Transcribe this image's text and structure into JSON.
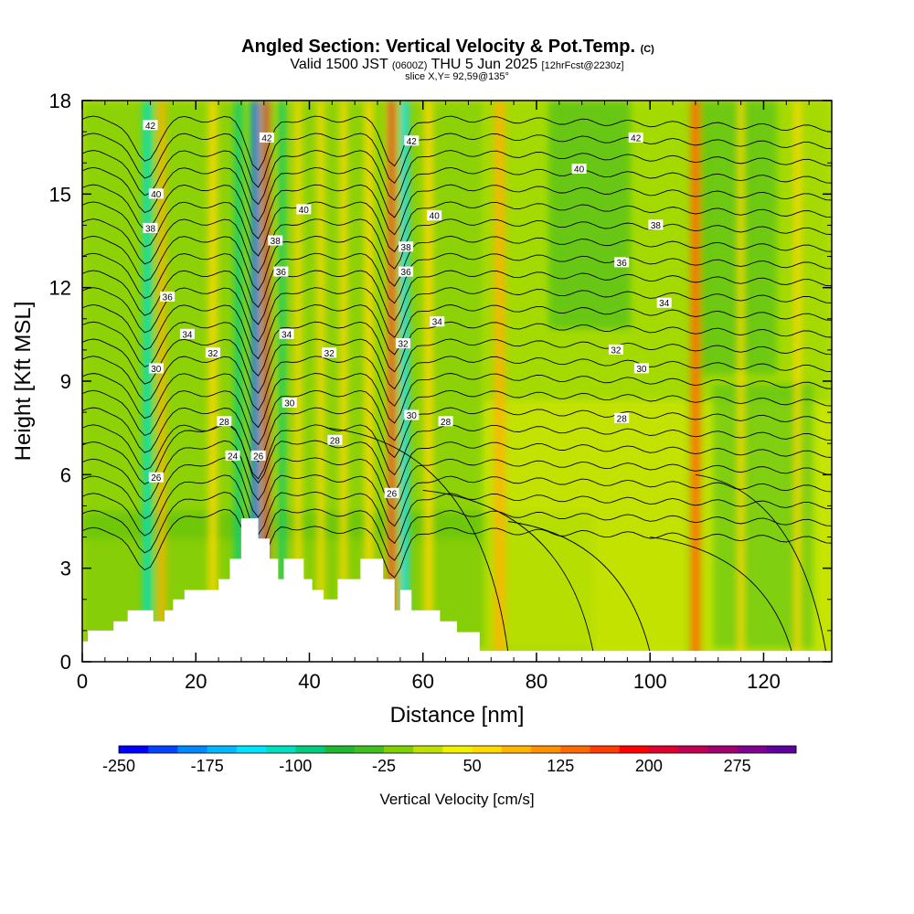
{
  "header": {
    "title": "Angled Section: Vertical Velocity & Pot.Temp.",
    "title_mark": "(C)",
    "valid_prefix": "Valid 1500 JST",
    "valid_z": "(0600Z)",
    "valid_date": "THU 5 Jun 2025",
    "valid_fcst": "[12hrFcst@2230z]",
    "slice": "slice X,Y= 92,59@135°"
  },
  "chart_data": {
    "type": "heatmap",
    "xlabel": "Distance [nm]",
    "ylabel": "Height [Kft MSL]",
    "xlim": [
      0,
      132
    ],
    "ylim": [
      0,
      18
    ],
    "x_ticks": [
      0,
      20,
      40,
      60,
      80,
      100,
      120
    ],
    "y_ticks": [
      0,
      3,
      6,
      9,
      12,
      15,
      18
    ],
    "colorbar": {
      "title": "Vertical Velocity [cm/s]",
      "min": -250,
      "max": 325,
      "step": 25,
      "tick_labels": [
        "-250",
        "-175",
        "-100",
        "-25",
        "50",
        "125",
        "200",
        "275"
      ],
      "colors": [
        "#0000ff",
        "#0044ff",
        "#0088ff",
        "#00b8ff",
        "#00e4ff",
        "#00e0c0",
        "#00cc80",
        "#20b830",
        "#40c020",
        "#80d000",
        "#c0e000",
        "#f0f000",
        "#ffd800",
        "#ffb400",
        "#ff9000",
        "#ff6a00",
        "#ff3c00",
        "#ff0000",
        "#e00030",
        "#c00050",
        "#a00070",
        "#800090",
        "#60009c"
      ]
    },
    "vertical_velocity_bands": [
      {
        "x": 11.5,
        "w": 1.6,
        "value": -120
      },
      {
        "x": 14.0,
        "w": 1.3,
        "value": 90
      },
      {
        "x": 23.0,
        "w": 1.5,
        "value": 70
      },
      {
        "x": 27.5,
        "w": 1.3,
        "value": -90
      },
      {
        "x": 30.5,
        "w": 0.9,
        "value": -240
      },
      {
        "x": 32.3,
        "w": 1.0,
        "value": 230
      },
      {
        "x": 35.2,
        "w": 1.0,
        "value": -100
      },
      {
        "x": 38.0,
        "w": 1.2,
        "value": 60
      },
      {
        "x": 42.0,
        "w": 1.2,
        "value": 60
      },
      {
        "x": 46.0,
        "w": 1.2,
        "value": 60
      },
      {
        "x": 50.5,
        "w": 1.5,
        "value": 70
      },
      {
        "x": 54.5,
        "w": 1.1,
        "value": 220
      },
      {
        "x": 56.8,
        "w": 1.0,
        "value": -150
      },
      {
        "x": 61.0,
        "w": 1.5,
        "value": 50
      },
      {
        "x": 73.5,
        "w": 1.8,
        "value": 80
      },
      {
        "x": 108.0,
        "w": 1.5,
        "value": 140
      },
      {
        "x": 116.0,
        "w": 1.2,
        "value": 60
      },
      {
        "x": 126.0,
        "w": 1.2,
        "value": 70
      }
    ],
    "terrain_kft": [
      [
        0,
        0.65
      ],
      [
        1,
        1.0
      ],
      [
        5.5,
        1.3
      ],
      [
        8,
        1.65
      ],
      [
        12.5,
        1.3
      ],
      [
        14.5,
        1.65
      ],
      [
        16,
        2.0
      ],
      [
        18,
        2.3
      ],
      [
        24,
        2.65
      ],
      [
        26,
        3.3
      ],
      [
        28,
        4.6
      ],
      [
        31,
        3.95
      ],
      [
        33,
        3.3
      ],
      [
        34.5,
        2.65
      ],
      [
        35.5,
        3.3
      ],
      [
        39,
        2.65
      ],
      [
        40.5,
        2.3
      ],
      [
        42.5,
        2.0
      ],
      [
        45,
        2.65
      ],
      [
        49,
        3.3
      ],
      [
        53,
        2.65
      ],
      [
        55,
        1.65
      ],
      [
        56,
        2.3
      ],
      [
        58,
        1.65
      ],
      [
        63,
        1.3
      ],
      [
        66,
        0.95
      ],
      [
        70,
        0.35
      ],
      [
        132,
        0.35
      ]
    ],
    "pot_temp_labels": [
      {
        "x": 12.0,
        "y": 17.2,
        "text": "42"
      },
      {
        "x": 32.5,
        "y": 16.8,
        "text": "42"
      },
      {
        "x": 58.0,
        "y": 16.7,
        "text": "42"
      },
      {
        "x": 97.5,
        "y": 16.8,
        "text": "42"
      },
      {
        "x": 87.5,
        "y": 15.8,
        "text": "40"
      },
      {
        "x": 13.0,
        "y": 15.0,
        "text": "40"
      },
      {
        "x": 39.0,
        "y": 14.5,
        "text": "40"
      },
      {
        "x": 62.0,
        "y": 14.3,
        "text": "40"
      },
      {
        "x": 12.0,
        "y": 13.9,
        "text": "38"
      },
      {
        "x": 34.0,
        "y": 13.5,
        "text": "38"
      },
      {
        "x": 57.0,
        "y": 13.3,
        "text": "38"
      },
      {
        "x": 101.0,
        "y": 14.0,
        "text": "38"
      },
      {
        "x": 35.0,
        "y": 12.5,
        "text": "36"
      },
      {
        "x": 57.0,
        "y": 12.5,
        "text": "36"
      },
      {
        "x": 15.0,
        "y": 11.7,
        "text": "36"
      },
      {
        "x": 95.0,
        "y": 12.8,
        "text": "36"
      },
      {
        "x": 18.5,
        "y": 10.5,
        "text": "34"
      },
      {
        "x": 36.0,
        "y": 10.5,
        "text": "34"
      },
      {
        "x": 62.5,
        "y": 10.9,
        "text": "34"
      },
      {
        "x": 102.5,
        "y": 11.5,
        "text": "34"
      },
      {
        "x": 23.0,
        "y": 9.9,
        "text": "32"
      },
      {
        "x": 43.5,
        "y": 9.9,
        "text": "32"
      },
      {
        "x": 56.5,
        "y": 10.2,
        "text": "32"
      },
      {
        "x": 94.0,
        "y": 10.0,
        "text": "32"
      },
      {
        "x": 13.0,
        "y": 9.4,
        "text": "30"
      },
      {
        "x": 36.5,
        "y": 8.3,
        "text": "30"
      },
      {
        "x": 58.0,
        "y": 7.9,
        "text": "30"
      },
      {
        "x": 98.5,
        "y": 9.4,
        "text": "30"
      },
      {
        "x": 25.0,
        "y": 7.7,
        "text": "28"
      },
      {
        "x": 44.5,
        "y": 7.1,
        "text": "28"
      },
      {
        "x": 64.0,
        "y": 7.7,
        "text": "28"
      },
      {
        "x": 95.0,
        "y": 7.8,
        "text": "28"
      },
      {
        "x": 13.0,
        "y": 5.9,
        "text": "26"
      },
      {
        "x": 31.0,
        "y": 6.6,
        "text": "26"
      },
      {
        "x": 54.5,
        "y": 5.4,
        "text": "26"
      },
      {
        "x": 26.5,
        "y": 6.6,
        "text": "24"
      }
    ]
  }
}
